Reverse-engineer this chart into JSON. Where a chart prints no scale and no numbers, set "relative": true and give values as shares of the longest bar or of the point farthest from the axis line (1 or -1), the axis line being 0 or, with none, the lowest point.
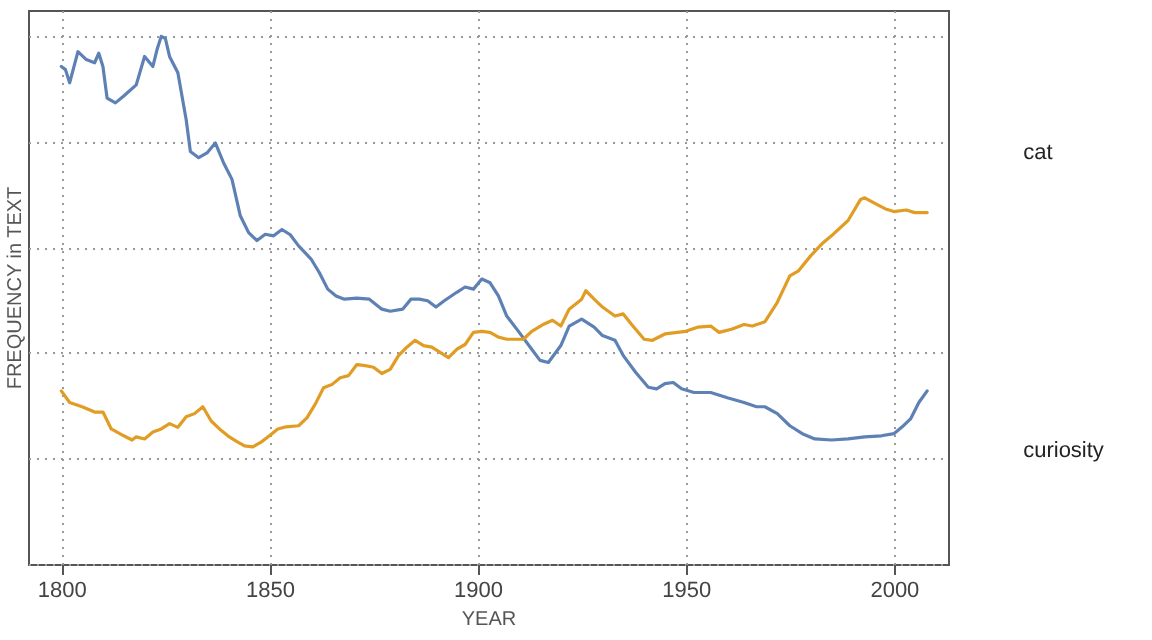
{
  "chart_data": {
    "type": "line",
    "xlabel": "YEAR",
    "ylabel": "FREQUENCY in TEXT",
    "relative": true,
    "xlim": [
      1792,
      2013
    ],
    "xticks": [
      1800,
      1850,
      1900,
      1950,
      2000
    ],
    "grid": true,
    "line_style": "solid",
    "series": [
      {
        "name": "curiosity",
        "color": "#5e81b5",
        "x": [
          1800,
          1801,
          1802,
          1804,
          1806,
          1808,
          1809,
          1810,
          1811,
          1813,
          1815,
          1818,
          1820,
          1822,
          1823,
          1824,
          1825,
          1826,
          1828,
          1830,
          1831,
          1833,
          1835,
          1837,
          1839,
          1841,
          1843,
          1845,
          1847,
          1849,
          1851,
          1853,
          1855,
          1857,
          1860,
          1862,
          1864,
          1866,
          1868,
          1871,
          1874,
          1877,
          1879,
          1882,
          1884,
          1886,
          1888,
          1890,
          1892,
          1895,
          1897,
          1899,
          1901,
          1903,
          1905,
          1907,
          1910,
          1913,
          1915,
          1917,
          1920,
          1922,
          1925,
          1928,
          1930,
          1933,
          1935,
          1938,
          1941,
          1943,
          1945,
          1947,
          1949,
          1952,
          1956,
          1960,
          1964,
          1967,
          1969,
          1972,
          1975,
          1978,
          1981,
          1985,
          1989,
          1993,
          1997,
          2000,
          2002,
          2004,
          2006,
          2008
        ],
        "values": [
          0.943,
          0.937,
          0.912,
          0.971,
          0.956,
          0.95,
          0.968,
          0.943,
          0.883,
          0.874,
          0.887,
          0.908,
          0.962,
          0.943,
          0.975,
          1,
          0.996,
          0.962,
          0.931,
          0.842,
          0.782,
          0.77,
          0.779,
          0.798,
          0.76,
          0.729,
          0.66,
          0.628,
          0.613,
          0.625,
          0.622,
          0.634,
          0.624,
          0.603,
          0.578,
          0.552,
          0.521,
          0.508,
          0.502,
          0.504,
          0.502,
          0.483,
          0.479,
          0.483,
          0.502,
          0.502,
          0.499,
          0.487,
          0.499,
          0.515,
          0.525,
          0.521,
          0.54,
          0.533,
          0.508,
          0.47,
          0.439,
          0.407,
          0.386,
          0.382,
          0.414,
          0.451,
          0.464,
          0.449,
          0.433,
          0.424,
          0.395,
          0.363,
          0.335,
          0.332,
          0.342,
          0.344,
          0.332,
          0.325,
          0.325,
          0.315,
          0.306,
          0.298,
          0.298,
          0.285,
          0.262,
          0.247,
          0.237,
          0.235,
          0.237,
          0.241,
          0.243,
          0.247,
          0.26,
          0.275,
          0.306,
          0.328
        ]
      },
      {
        "name": "cat",
        "color": "#e19c24",
        "x": [
          1800,
          1802,
          1805,
          1808,
          1810,
          1812,
          1815,
          1817,
          1818,
          1820,
          1822,
          1824,
          1826,
          1828,
          1830,
          1832,
          1834,
          1836,
          1838,
          1840,
          1842,
          1844,
          1846,
          1848,
          1850,
          1852,
          1854,
          1857,
          1859,
          1861,
          1863,
          1865,
          1867,
          1869,
          1871,
          1873,
          1875,
          1877,
          1879,
          1881,
          1883,
          1885,
          1887,
          1889,
          1891,
          1893,
          1895,
          1897,
          1899,
          1901,
          1903,
          1905,
          1907,
          1911,
          1913,
          1916,
          1918,
          1920,
          1922,
          1925,
          1926,
          1928,
          1930,
          1933,
          1935,
          1937,
          1940,
          1942,
          1945,
          1948,
          1950,
          1953,
          1956,
          1958,
          1961,
          1964,
          1966,
          1969,
          1972,
          1975,
          1977,
          1980,
          1983,
          1985,
          1989,
          1992,
          1993,
          1996,
          1998,
          2000,
          2003,
          2005,
          2008
        ],
        "values": [
          0.328,
          0.306,
          0.298,
          0.288,
          0.288,
          0.256,
          0.243,
          0.235,
          0.241,
          0.237,
          0.25,
          0.256,
          0.266,
          0.259,
          0.279,
          0.285,
          0.298,
          0.271,
          0.256,
          0.243,
          0.233,
          0.224,
          0.222,
          0.231,
          0.243,
          0.256,
          0.26,
          0.262,
          0.277,
          0.303,
          0.334,
          0.34,
          0.353,
          0.357,
          0.378,
          0.376,
          0.373,
          0.361,
          0.369,
          0.395,
          0.411,
          0.424,
          0.414,
          0.411,
          0.401,
          0.391,
          0.407,
          0.416,
          0.439,
          0.441,
          0.439,
          0.43,
          0.426,
          0.426,
          0.441,
          0.455,
          0.462,
          0.451,
          0.483,
          0.502,
          0.518,
          0.502,
          0.487,
          0.47,
          0.474,
          0.454,
          0.426,
          0.424,
          0.436,
          0.439,
          0.441,
          0.449,
          0.451,
          0.439,
          0.445,
          0.454,
          0.451,
          0.459,
          0.496,
          0.546,
          0.555,
          0.584,
          0.609,
          0.622,
          0.651,
          0.691,
          0.694,
          0.681,
          0.673,
          0.668,
          0.671,
          0.666,
          0.666
        ]
      }
    ]
  }
}
